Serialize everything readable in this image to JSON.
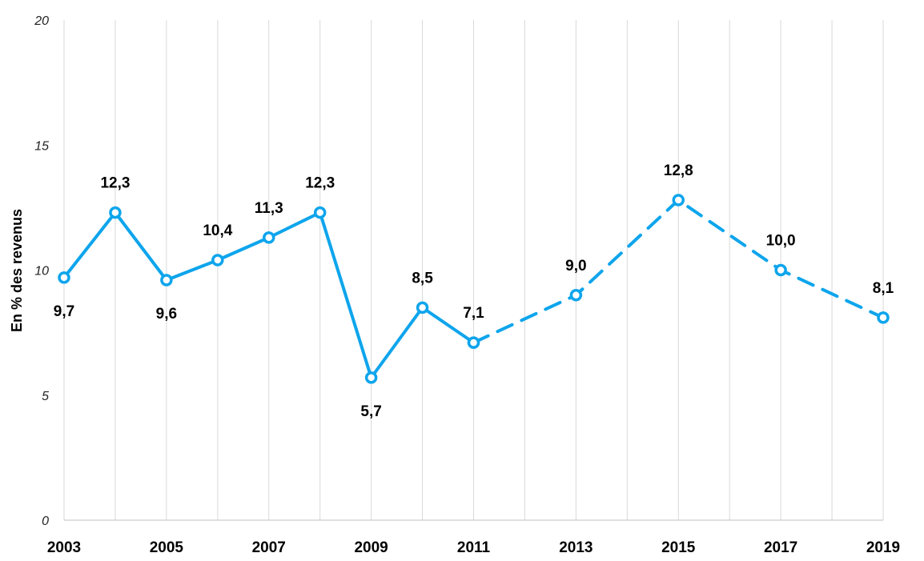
{
  "chart_data": {
    "type": "line",
    "ylabel": "En % des revenus",
    "xlabel": "",
    "ylim": [
      0,
      20
    ],
    "yticks": [
      "0",
      "5",
      "10",
      "15",
      "20"
    ],
    "xlim": [
      2003,
      2019
    ],
    "xtick_labels": [
      "2003",
      "2005",
      "2007",
      "2009",
      "2011",
      "2013",
      "2015",
      "2017",
      "2019"
    ],
    "grid": "vertical lines at each year",
    "color": "#0ea5ec",
    "series": [
      {
        "style": "solid",
        "x": [
          2003,
          2004,
          2005,
          2006,
          2007,
          2008,
          2009,
          2010,
          2011
        ],
        "values": [
          9.7,
          12.3,
          9.6,
          10.4,
          11.3,
          12.3,
          5.7,
          8.5,
          7.1
        ],
        "labels": [
          "9,7",
          "12,3",
          "9,6",
          "10,4",
          "11,3",
          "12,3",
          "5,7",
          "8,5",
          "7,1"
        ],
        "label_positions": [
          "below",
          "above",
          "below",
          "above",
          "above",
          "above",
          "below",
          "above",
          "above"
        ]
      },
      {
        "style": "dashed",
        "x": [
          2011,
          2013,
          2015,
          2017,
          2019
        ],
        "values": [
          7.1,
          9.0,
          12.8,
          10.0,
          8.1
        ],
        "labels": [
          "",
          "9,0",
          "12,8",
          "10,0",
          "8,1"
        ],
        "label_positions": [
          "none",
          "above",
          "above",
          "above",
          "above"
        ]
      }
    ]
  }
}
